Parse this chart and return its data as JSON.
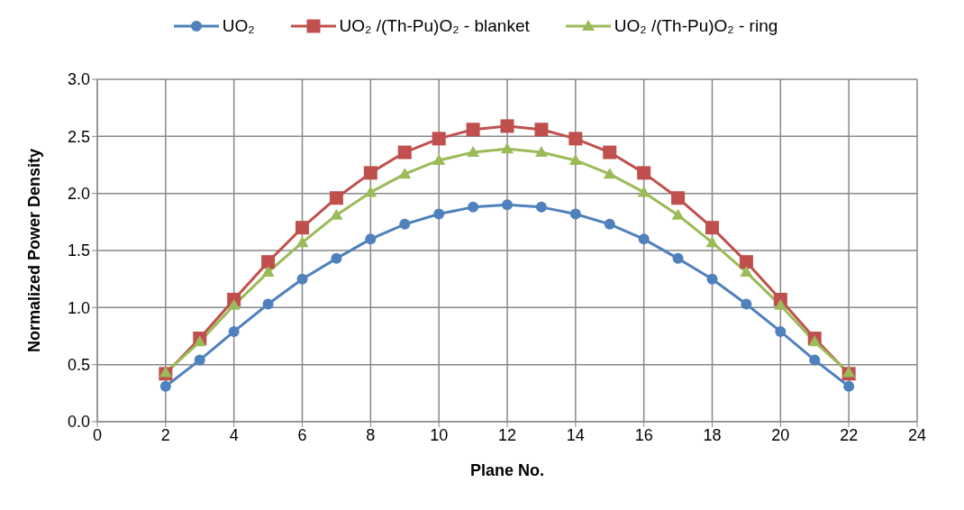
{
  "chart_data": {
    "type": "line",
    "xlabel": "Plane No.",
    "ylabel": "Normalized Power Density",
    "x": [
      2,
      3,
      4,
      5,
      6,
      7,
      8,
      9,
      10,
      11,
      12,
      13,
      14,
      15,
      16,
      17,
      18,
      19,
      20,
      21,
      22
    ],
    "xlim": [
      0,
      24
    ],
    "xticks": [
      0,
      2,
      4,
      6,
      8,
      10,
      12,
      14,
      16,
      18,
      20,
      22,
      24
    ],
    "ylim": [
      0,
      3
    ],
    "yticks": [
      {
        "value": 0,
        "label": "0.0"
      },
      {
        "value": 0.5,
        "label": "0.5"
      },
      {
        "value": 1,
        "label": "1.0"
      },
      {
        "value": 1.5,
        "label": "1.5"
      },
      {
        "value": 2,
        "label": "2.0"
      },
      {
        "value": 2.5,
        "label": "2.5"
      },
      {
        "value": 3,
        "label": "3.0"
      }
    ],
    "grid": true,
    "legend": "top",
    "line_style": "solid",
    "series": [
      {
        "name": "UO₂",
        "color": "#4f81bd",
        "marker": "circle",
        "values": [
          0.31,
          0.54,
          0.79,
          1.03,
          1.25,
          1.43,
          1.6,
          1.73,
          1.82,
          1.88,
          1.9,
          1.88,
          1.82,
          1.73,
          1.6,
          1.43,
          1.25,
          1.03,
          0.79,
          0.54,
          0.31
        ]
      },
      {
        "name": "UO₂ /(Th-Pu)O₂ - blanket",
        "color": "#c0504d",
        "marker": "square",
        "values": [
          0.42,
          0.73,
          1.07,
          1.4,
          1.7,
          1.96,
          2.18,
          2.36,
          2.48,
          2.56,
          2.59,
          2.56,
          2.48,
          2.36,
          2.18,
          1.96,
          1.7,
          1.4,
          1.07,
          0.73,
          0.42
        ]
      },
      {
        "name": "UO₂ /(Th-Pu)O₂ - ring",
        "color": "#9bbb59",
        "marker": "triangle",
        "values": [
          0.43,
          0.7,
          1.02,
          1.31,
          1.57,
          1.81,
          2.01,
          2.17,
          2.29,
          2.36,
          2.39,
          2.36,
          2.29,
          2.17,
          2.01,
          1.81,
          1.57,
          1.31,
          1.02,
          0.7,
          0.43
        ]
      }
    ]
  }
}
